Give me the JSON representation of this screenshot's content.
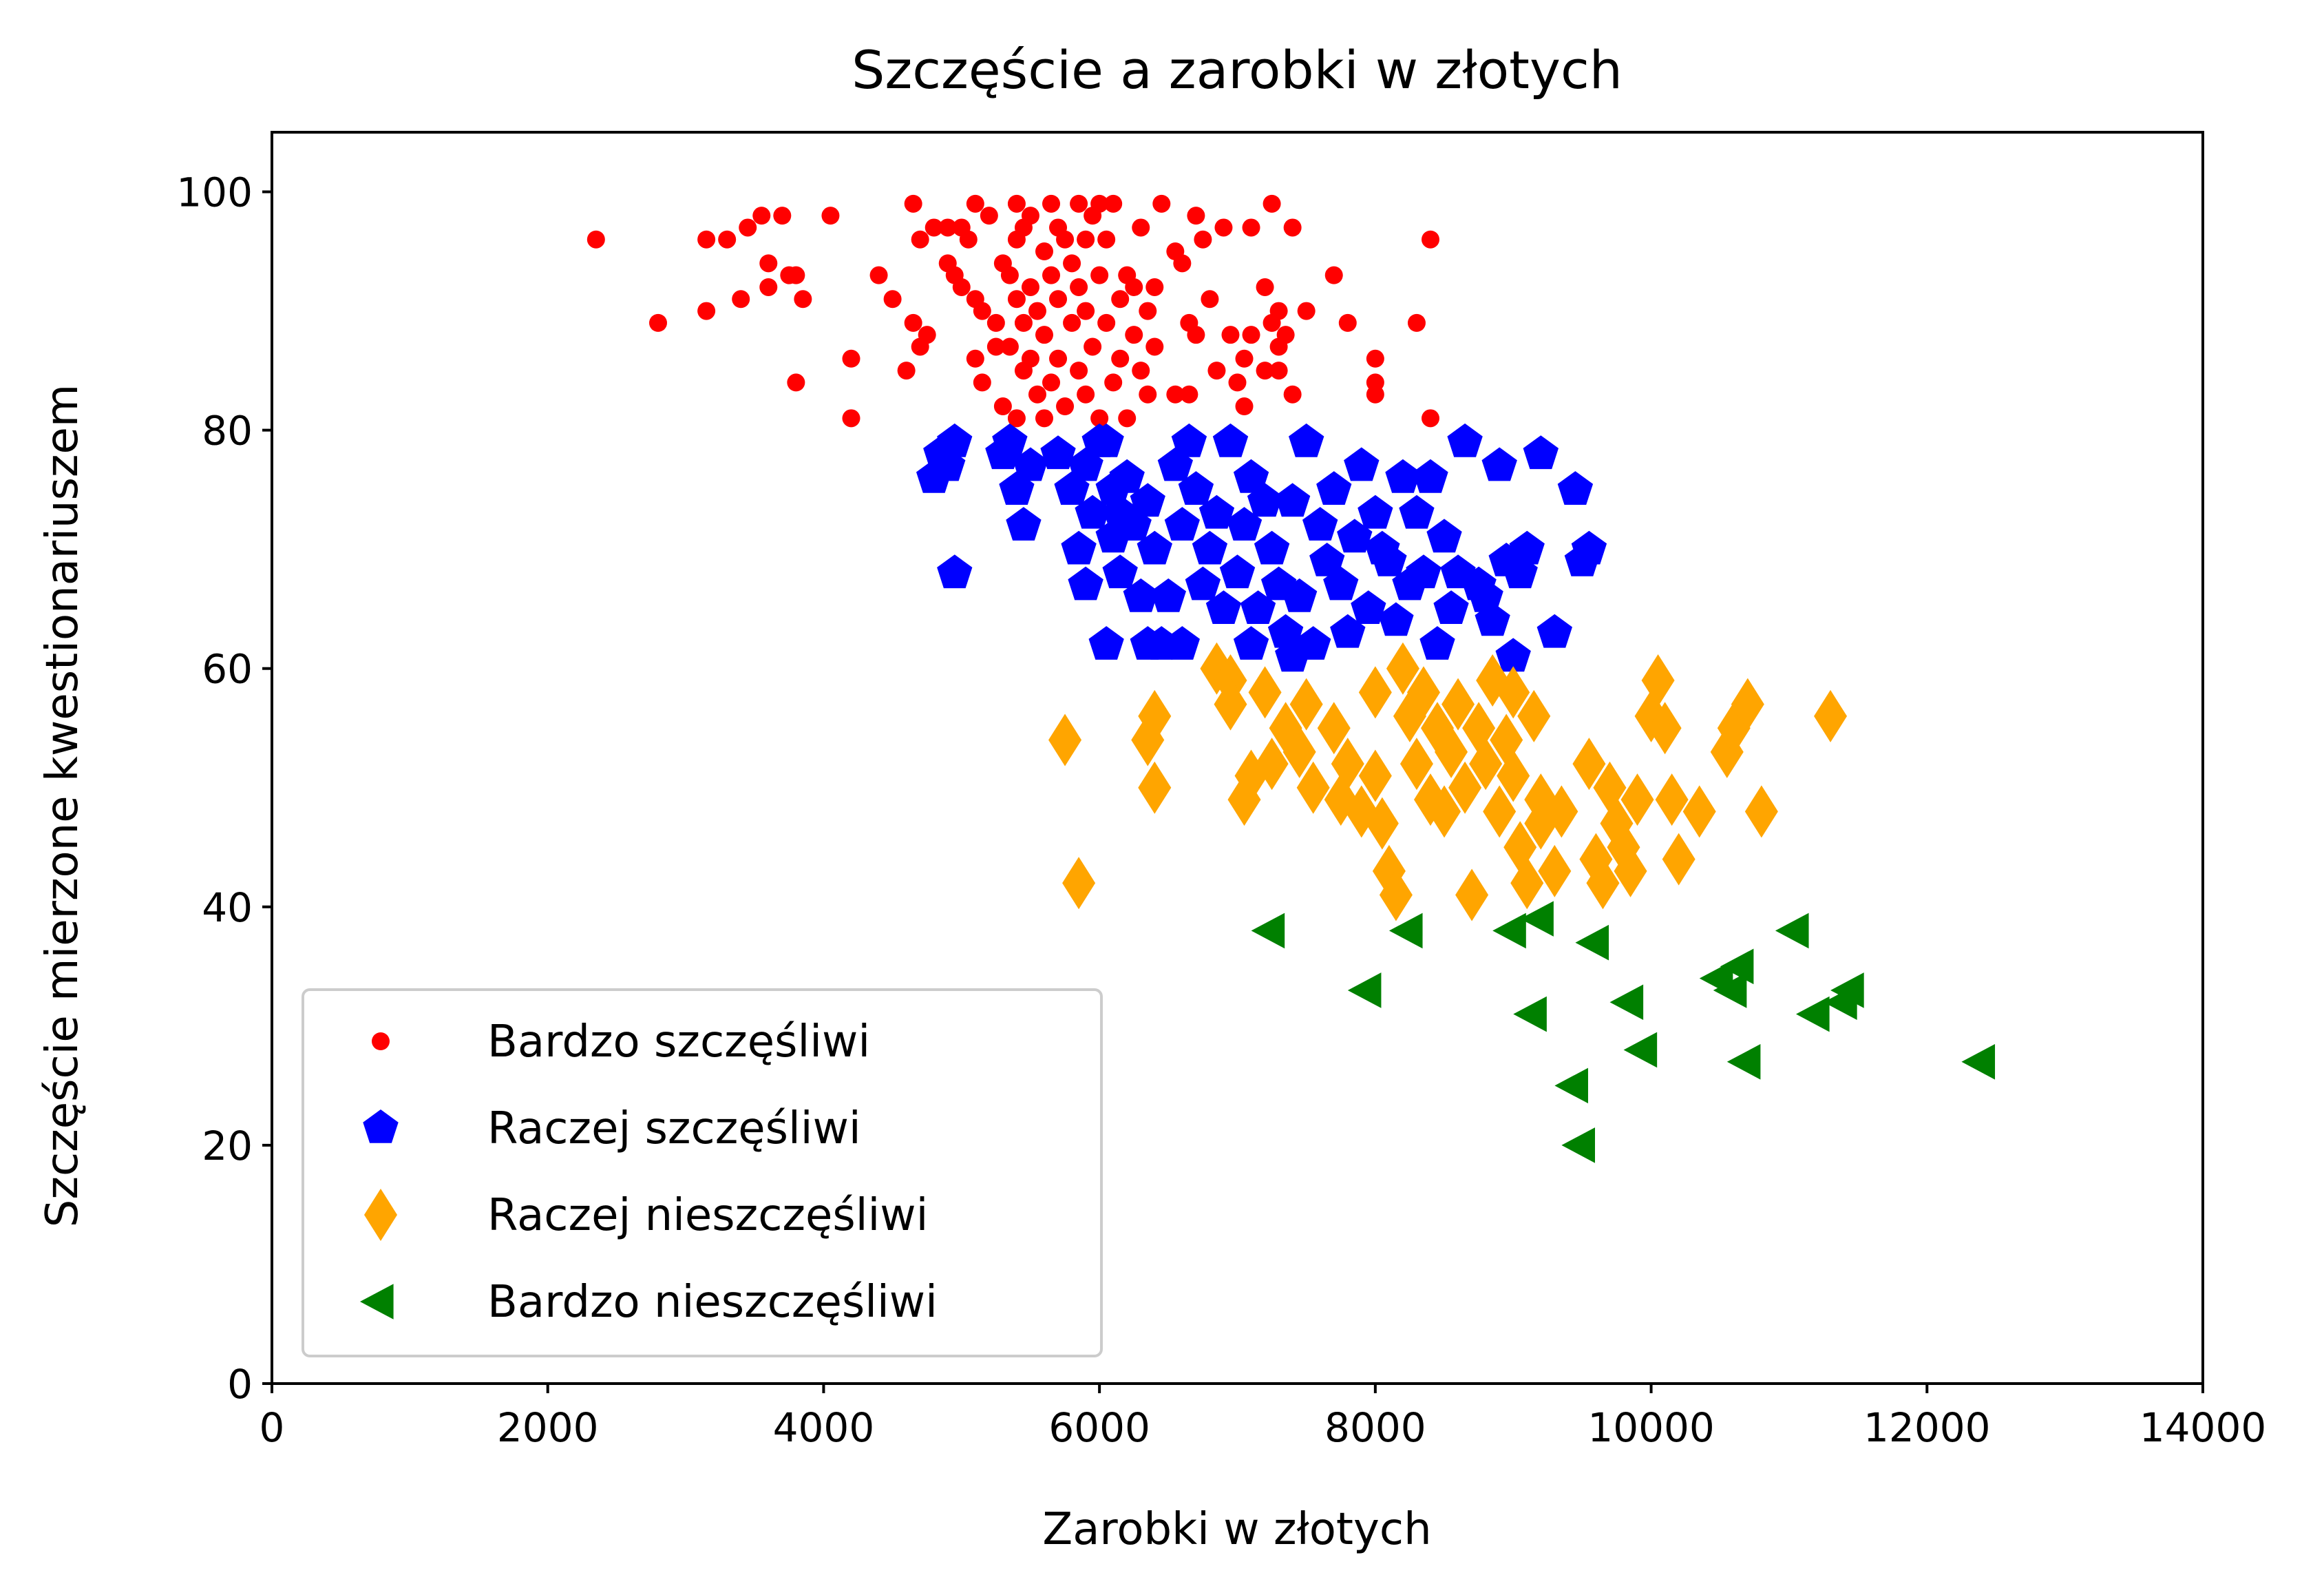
{
  "chart_data": {
    "type": "scatter",
    "title": "Szczęście a zarobki w złotych",
    "xlabel": "Zarobki w złotych",
    "ylabel": "Szczęście mierzone kwestionariuszem",
    "xlim": [
      0,
      14000
    ],
    "ylim": [
      0,
      105
    ],
    "x_ticks": [
      0,
      2000,
      4000,
      6000,
      8000,
      10000,
      12000,
      14000
    ],
    "y_ticks": [
      0,
      20,
      40,
      60,
      80,
      100
    ],
    "grid": false,
    "legend_position": "lower-left",
    "series": [
      {
        "name": "Bardzo szczęśliwi",
        "color": "#ff0000",
        "marker": "circle",
        "points": [
          [
            2350,
            96
          ],
          [
            2800,
            89
          ],
          [
            3150,
            96
          ],
          [
            3150,
            90
          ],
          [
            3300,
            96
          ],
          [
            3400,
            91
          ],
          [
            3450,
            97
          ],
          [
            3550,
            98
          ],
          [
            3600,
            92
          ],
          [
            3600,
            94
          ],
          [
            3700,
            98
          ],
          [
            3750,
            93
          ],
          [
            3800,
            93
          ],
          [
            3800,
            84
          ],
          [
            3850,
            91
          ],
          [
            4050,
            98
          ],
          [
            4200,
            86
          ],
          [
            4200,
            81
          ],
          [
            4400,
            93
          ],
          [
            4500,
            91
          ],
          [
            4600,
            85
          ],
          [
            4650,
            89
          ],
          [
            4650,
            99
          ],
          [
            4700,
            96
          ],
          [
            4700,
            87
          ],
          [
            4750,
            88
          ],
          [
            4800,
            97
          ],
          [
            4900,
            97
          ],
          [
            4900,
            94
          ],
          [
            4950,
            93
          ],
          [
            5000,
            97
          ],
          [
            5000,
            92
          ],
          [
            5050,
            96
          ],
          [
            5100,
            91
          ],
          [
            5100,
            99
          ],
          [
            5100,
            86
          ],
          [
            5150,
            90
          ],
          [
            5150,
            84
          ],
          [
            5200,
            98
          ],
          [
            5250,
            89
          ],
          [
            5250,
            87
          ],
          [
            5300,
            94
          ],
          [
            5300,
            82
          ],
          [
            5350,
            93
          ],
          [
            5350,
            87
          ],
          [
            5400,
            99
          ],
          [
            5400,
            96
          ],
          [
            5400,
            91
          ],
          [
            5400,
            81
          ],
          [
            5450,
            97
          ],
          [
            5450,
            89
          ],
          [
            5450,
            85
          ],
          [
            5500,
            98
          ],
          [
            5500,
            92
          ],
          [
            5500,
            86
          ],
          [
            5550,
            90
          ],
          [
            5550,
            83
          ],
          [
            5600,
            95
          ],
          [
            5600,
            88
          ],
          [
            5600,
            81
          ],
          [
            5650,
            99
          ],
          [
            5650,
            93
          ],
          [
            5650,
            84
          ],
          [
            5700,
            97
          ],
          [
            5700,
            91
          ],
          [
            5700,
            86
          ],
          [
            5750,
            96
          ],
          [
            5750,
            82
          ],
          [
            5800,
            94
          ],
          [
            5800,
            89
          ],
          [
            5850,
            99
          ],
          [
            5850,
            92
          ],
          [
            5850,
            85
          ],
          [
            5900,
            96
          ],
          [
            5900,
            90
          ],
          [
            5900,
            83
          ],
          [
            5950,
            98
          ],
          [
            5950,
            87
          ],
          [
            6000,
            99
          ],
          [
            6000,
            93
          ],
          [
            6000,
            81
          ],
          [
            6050,
            96
          ],
          [
            6050,
            89
          ],
          [
            6100,
            99
          ],
          [
            6100,
            84
          ],
          [
            6150,
            91
          ],
          [
            6150,
            86
          ],
          [
            6200,
            93
          ],
          [
            6200,
            81
          ],
          [
            6250,
            92
          ],
          [
            6250,
            88
          ],
          [
            6300,
            97
          ],
          [
            6300,
            85
          ],
          [
            6350,
            90
          ],
          [
            6350,
            83
          ],
          [
            6400,
            92
          ],
          [
            6400,
            87
          ],
          [
            6450,
            99
          ],
          [
            6550,
            83
          ],
          [
            6550,
            95
          ],
          [
            6600,
            94
          ],
          [
            6650,
            89
          ],
          [
            6650,
            83
          ],
          [
            6700,
            98
          ],
          [
            6700,
            88
          ],
          [
            6750,
            96
          ],
          [
            6800,
            91
          ],
          [
            6850,
            85
          ],
          [
            6900,
            97
          ],
          [
            6950,
            88
          ],
          [
            7000,
            84
          ],
          [
            7050,
            86
          ],
          [
            7050,
            82
          ],
          [
            7100,
            88
          ],
          [
            7100,
            97
          ],
          [
            7200,
            92
          ],
          [
            7200,
            85
          ],
          [
            7250,
            89
          ],
          [
            7250,
            99
          ],
          [
            7300,
            90
          ],
          [
            7300,
            87
          ],
          [
            7300,
            85
          ],
          [
            7350,
            88
          ],
          [
            7400,
            97
          ],
          [
            7400,
            83
          ],
          [
            7500,
            90
          ],
          [
            7700,
            93
          ],
          [
            7800,
            89
          ],
          [
            8000,
            86
          ],
          [
            8000,
            84
          ],
          [
            8000,
            83
          ],
          [
            8300,
            89
          ],
          [
            8400,
            96
          ],
          [
            8400,
            81
          ]
        ]
      },
      {
        "name": "Raczej szczęśliwi",
        "color": "#0000ff",
        "marker": "pentagon",
        "points": [
          [
            4800,
            76
          ],
          [
            4850,
            78
          ],
          [
            4900,
            77
          ],
          [
            4950,
            79
          ],
          [
            4950,
            68
          ],
          [
            5300,
            78
          ],
          [
            5350,
            79
          ],
          [
            5400,
            75
          ],
          [
            5450,
            72
          ],
          [
            5500,
            77
          ],
          [
            5700,
            78
          ],
          [
            5800,
            75
          ],
          [
            5850,
            70
          ],
          [
            5900,
            77
          ],
          [
            5900,
            67
          ],
          [
            5950,
            73
          ],
          [
            6000,
            79
          ],
          [
            6050,
            79
          ],
          [
            6100,
            71
          ],
          [
            6100,
            75
          ],
          [
            6150,
            73
          ],
          [
            6150,
            68
          ],
          [
            6200,
            76
          ],
          [
            6250,
            72
          ],
          [
            6300,
            66
          ],
          [
            6350,
            74
          ],
          [
            6400,
            70
          ],
          [
            6450,
            62
          ],
          [
            6500,
            66
          ],
          [
            6550,
            77
          ],
          [
            6600,
            72
          ],
          [
            6650,
            79
          ],
          [
            6700,
            75
          ],
          [
            6750,
            67
          ],
          [
            6800,
            70
          ],
          [
            6850,
            73
          ],
          [
            6900,
            65
          ],
          [
            6950,
            79
          ],
          [
            7000,
            68
          ],
          [
            7050,
            72
          ],
          [
            7100,
            76
          ],
          [
            7150,
            65
          ],
          [
            7200,
            74
          ],
          [
            7250,
            70
          ],
          [
            7300,
            67
          ],
          [
            7350,
            63
          ],
          [
            7400,
            74
          ],
          [
            7450,
            66
          ],
          [
            7500,
            79
          ],
          [
            7550,
            62
          ],
          [
            7600,
            72
          ],
          [
            7650,
            69
          ],
          [
            7700,
            75
          ],
          [
            7750,
            67
          ],
          [
            7800,
            63
          ],
          [
            7850,
            71
          ],
          [
            7900,
            77
          ],
          [
            7950,
            65
          ],
          [
            8000,
            73
          ],
          [
            8050,
            70
          ],
          [
            8100,
            69
          ],
          [
            8150,
            64
          ],
          [
            8200,
            76
          ],
          [
            8250,
            67
          ],
          [
            8300,
            73
          ],
          [
            8350,
            68
          ],
          [
            8400,
            76
          ],
          [
            8450,
            62
          ],
          [
            8500,
            71
          ],
          [
            8550,
            65
          ],
          [
            8600,
            68
          ],
          [
            8650,
            79
          ],
          [
            8750,
            67
          ],
          [
            8800,
            66
          ],
          [
            8850,
            64
          ],
          [
            8900,
            77
          ],
          [
            8950,
            69
          ],
          [
            9000,
            61
          ],
          [
            9050,
            68
          ],
          [
            9100,
            70
          ],
          [
            9200,
            78
          ],
          [
            9300,
            63
          ],
          [
            9450,
            75
          ],
          [
            9500,
            69
          ],
          [
            9550,
            70
          ],
          [
            6050,
            62
          ],
          [
            6350,
            62
          ],
          [
            6600,
            62
          ],
          [
            7100,
            62
          ],
          [
            7400,
            61
          ]
        ]
      },
      {
        "name": "Raczej nieszczęśliwi",
        "color": "#ffa500",
        "marker": "thin-diamond",
        "points": [
          [
            5750,
            54
          ],
          [
            5850,
            42
          ],
          [
            6350,
            54
          ],
          [
            6400,
            50
          ],
          [
            6400,
            56
          ],
          [
            6850,
            60
          ],
          [
            6950,
            59
          ],
          [
            6950,
            57
          ],
          [
            7050,
            49
          ],
          [
            7100,
            51
          ],
          [
            7200,
            58
          ],
          [
            7250,
            52
          ],
          [
            7350,
            55
          ],
          [
            7450,
            53
          ],
          [
            7500,
            57
          ],
          [
            7550,
            50
          ],
          [
            7700,
            55
          ],
          [
            7750,
            49
          ],
          [
            7800,
            52
          ],
          [
            7900,
            48
          ],
          [
            8000,
            58
          ],
          [
            8000,
            51
          ],
          [
            8050,
            47
          ],
          [
            8100,
            43
          ],
          [
            8150,
            41
          ],
          [
            8200,
            60
          ],
          [
            8250,
            56
          ],
          [
            8300,
            52
          ],
          [
            8350,
            58
          ],
          [
            8400,
            49
          ],
          [
            8450,
            55
          ],
          [
            8500,
            48
          ],
          [
            8550,
            53
          ],
          [
            8600,
            57
          ],
          [
            8650,
            50
          ],
          [
            8700,
            41
          ],
          [
            8750,
            55
          ],
          [
            8800,
            52
          ],
          [
            8850,
            59
          ],
          [
            8900,
            48
          ],
          [
            8950,
            54
          ],
          [
            9000,
            51
          ],
          [
            9050,
            45
          ],
          [
            9100,
            42
          ],
          [
            9150,
            56
          ],
          [
            9200,
            49
          ],
          [
            9300,
            43
          ],
          [
            9350,
            48
          ],
          [
            9550,
            52
          ],
          [
            9600,
            44
          ],
          [
            9650,
            42
          ],
          [
            9700,
            50
          ],
          [
            9750,
            47
          ],
          [
            9800,
            45
          ],
          [
            9850,
            43
          ],
          [
            10000,
            56
          ],
          [
            10050,
            59
          ],
          [
            10100,
            55
          ],
          [
            10150,
            49
          ],
          [
            10200,
            44
          ],
          [
            10350,
            48
          ],
          [
            10550,
            53
          ],
          [
            10600,
            55
          ],
          [
            10700,
            57
          ],
          [
            10800,
            48
          ],
          [
            11300,
            56
          ],
          [
            9900,
            49
          ],
          [
            9000,
            58
          ],
          [
            9200,
            47
          ]
        ]
      },
      {
        "name": "Bardzo nieszczęśliwi",
        "color": "#008000",
        "marker": "triangle-left",
        "points": [
          [
            7250,
            38
          ],
          [
            7950,
            33
          ],
          [
            8250,
            38
          ],
          [
            9000,
            38
          ],
          [
            9150,
            31
          ],
          [
            9200,
            39
          ],
          [
            9450,
            25
          ],
          [
            9500,
            20
          ],
          [
            9600,
            37
          ],
          [
            9850,
            32
          ],
          [
            9950,
            28
          ],
          [
            10500,
            34
          ],
          [
            10600,
            33
          ],
          [
            10650,
            35
          ],
          [
            10700,
            27
          ],
          [
            11050,
            38
          ],
          [
            11200,
            31
          ],
          [
            11400,
            32
          ],
          [
            11450,
            33
          ],
          [
            12400,
            27
          ]
        ]
      }
    ]
  }
}
